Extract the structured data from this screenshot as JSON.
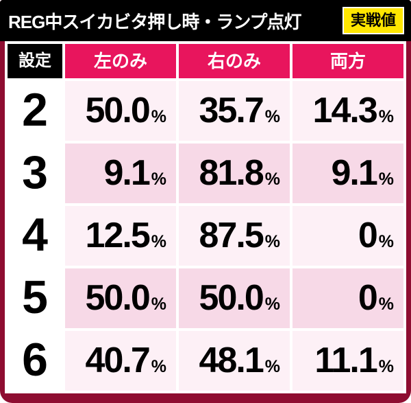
{
  "title": {
    "text": "REG中スイカビタ押し時・ランプ点灯",
    "badge": "実戦値"
  },
  "table": {
    "setting_header": "設定",
    "columns": [
      "左のみ",
      "右のみ",
      "両方"
    ],
    "percent_sign": "%",
    "rows": [
      {
        "setting": "2",
        "values": [
          "50.0",
          "35.7",
          "14.3"
        ]
      },
      {
        "setting": "3",
        "values": [
          "9.1",
          "81.8",
          "9.1"
        ]
      },
      {
        "setting": "4",
        "values": [
          "12.5",
          "87.5",
          "0"
        ]
      },
      {
        "setting": "5",
        "values": [
          "50.0",
          "50.0",
          "0"
        ]
      },
      {
        "setting": "6",
        "values": [
          "40.7",
          "48.1",
          "11.1"
        ]
      }
    ]
  },
  "chart_data": {
    "type": "table",
    "title": "REG中スイカビタ押し時・ランプ点灯",
    "badge": "実戦値",
    "columns": [
      "設定",
      "左のみ",
      "右のみ",
      "両方"
    ],
    "rows": [
      [
        "2",
        "50.0%",
        "35.7%",
        "14.3%"
      ],
      [
        "3",
        "9.1%",
        "81.8%",
        "9.1%"
      ],
      [
        "4",
        "12.5%",
        "87.5%",
        "0%"
      ],
      [
        "5",
        "50.0%",
        "50.0%",
        "0%"
      ],
      [
        "6",
        "40.7%",
        "48.1%",
        "11.1%"
      ]
    ]
  },
  "colors": {
    "frame_maroon": "#8e0d31",
    "titlebar_black": "#000000",
    "header_pink": "#e8155d",
    "badge_yellow": "#ffe600",
    "row_light": "#fdf0f6",
    "row_dark": "#f7d9e7",
    "gridline_white": "#ffffff"
  }
}
